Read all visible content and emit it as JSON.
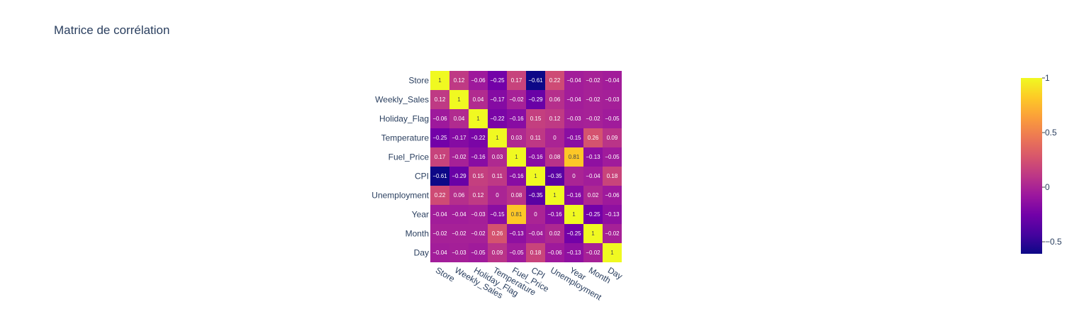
{
  "chart_data": {
    "type": "heatmap",
    "title": "Matrice de corrélation",
    "x": [
      "Store",
      "Weekly_Sales",
      "Holiday_Flag",
      "Temperature",
      "Fuel_Price",
      "CPI",
      "Unemployment",
      "Year",
      "Month",
      "Day"
    ],
    "y": [
      "Store",
      "Weekly_Sales",
      "Holiday_Flag",
      "Temperature",
      "Fuel_Price",
      "CPI",
      "Unemployment",
      "Year",
      "Month",
      "Day"
    ],
    "z": [
      [
        1,
        0.12,
        -0.06,
        -0.25,
        0.17,
        -0.61,
        0.22,
        -0.04,
        -0.02,
        -0.04
      ],
      [
        0.12,
        1,
        0.04,
        -0.17,
        -0.02,
        -0.29,
        0.06,
        -0.04,
        -0.02,
        -0.03
      ],
      [
        -0.06,
        0.04,
        1,
        -0.22,
        -0.16,
        0.15,
        0.12,
        -0.03,
        -0.02,
        -0.05
      ],
      [
        -0.25,
        -0.17,
        -0.22,
        1,
        0.03,
        0.11,
        0,
        -0.15,
        0.26,
        0.09
      ],
      [
        0.17,
        -0.02,
        -0.16,
        0.03,
        1,
        -0.16,
        0.08,
        0.81,
        -0.13,
        -0.05
      ],
      [
        -0.61,
        -0.29,
        0.15,
        0.11,
        -0.16,
        1,
        -0.35,
        0,
        -0.04,
        0.18
      ],
      [
        0.22,
        0.06,
        0.12,
        0,
        0.08,
        -0.35,
        1,
        -0.16,
        0.02,
        -0.06
      ],
      [
        -0.04,
        -0.04,
        -0.03,
        -0.15,
        0.81,
        0,
        -0.16,
        1,
        -0.25,
        -0.13
      ],
      [
        -0.02,
        -0.02,
        -0.02,
        0.26,
        -0.13,
        -0.04,
        0.02,
        -0.25,
        1,
        -0.02
      ],
      [
        -0.04,
        -0.03,
        -0.05,
        0.09,
        -0.05,
        0.18,
        -0.06,
        -0.13,
        -0.02,
        1
      ]
    ],
    "zmin": -0.61,
    "zmax": 1,
    "colorscale": [
      "#0d0887",
      "#46039f",
      "#7201a8",
      "#9c179e",
      "#bd3786",
      "#d8576b",
      "#ed7953",
      "#fb9f3a",
      "#fdca26",
      "#f0f921"
    ],
    "colorbar": {
      "ticks": [
        1,
        0.5,
        0,
        -0.5
      ],
      "tick_labels": [
        "1",
        "0.5",
        "0",
        "−0.5"
      ]
    }
  }
}
